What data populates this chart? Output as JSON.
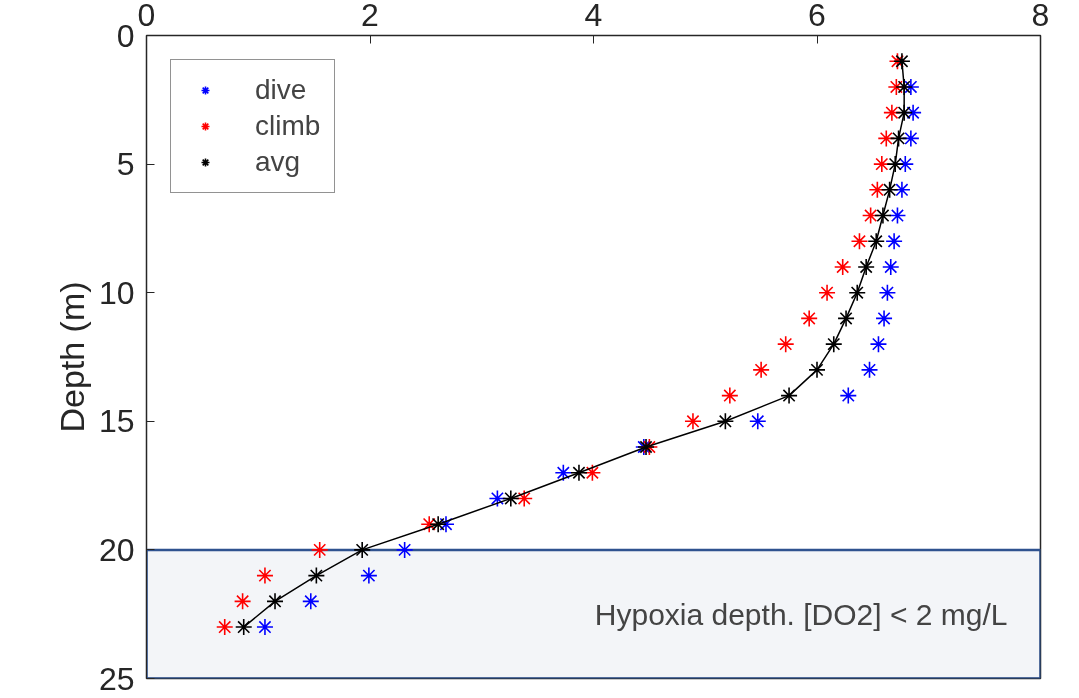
{
  "chart_data": {
    "type": "scatter",
    "ylabel": "Depth (m)",
    "marker": "cross",
    "legend": "top left",
    "grid": false,
    "xlim": [
      0,
      8
    ],
    "xticks": [
      0,
      2,
      4,
      6,
      8
    ],
    "ylim": [
      25,
      0
    ],
    "yticks": [
      0,
      5,
      10,
      15,
      20,
      25
    ],
    "series": [
      {
        "name": "dive",
        "color": "#0000ff",
        "x": [
          null,
          6.84,
          6.86,
          6.84,
          6.79,
          6.76,
          6.72,
          6.69,
          6.66,
          6.63,
          6.6,
          6.55,
          6.47,
          6.28,
          5.47,
          4.45,
          3.73,
          3.14,
          2.68,
          2.31,
          1.99,
          1.47,
          1.06
        ],
        "values": [
          null,
          2,
          3,
          4,
          5,
          6,
          7,
          8,
          9,
          10,
          11,
          12,
          13,
          14,
          15,
          16,
          17,
          18,
          19,
          20,
          21,
          22,
          23
        ]
      },
      {
        "name": "climb",
        "color": "#ff0000",
        "x": [
          6.72,
          6.71,
          6.67,
          6.62,
          6.58,
          6.54,
          6.48,
          6.38,
          6.23,
          6.09,
          5.93,
          5.72,
          5.5,
          5.22,
          4.89,
          4.5,
          3.99,
          3.38,
          2.53,
          1.55,
          1.06,
          0.86,
          0.7
        ],
        "values": [
          1,
          2,
          3,
          4,
          5,
          6,
          7,
          8,
          9,
          10,
          11,
          12,
          13,
          14,
          15,
          16,
          17,
          18,
          19,
          20,
          21,
          22,
          23
        ]
      },
      {
        "name": "avg",
        "color": "#000000",
        "type": "line",
        "x": [
          6.76,
          6.78,
          6.78,
          6.73,
          6.7,
          6.65,
          6.59,
          6.53,
          6.44,
          6.36,
          6.26,
          6.15,
          6.0,
          5.75,
          5.18,
          4.47,
          3.87,
          3.26,
          2.61,
          1.93,
          1.52,
          1.15,
          0.87
        ],
        "values": [
          1,
          2,
          3,
          4,
          5,
          6,
          7,
          8,
          9,
          10,
          11,
          12,
          13,
          14,
          15,
          16,
          17,
          18,
          19,
          20,
          21,
          22,
          23
        ]
      }
    ],
    "bands": [
      {
        "axis": "y",
        "from": 20,
        "to": 25,
        "label": "Hypoxia depth.    [DO2] < 2 mg/L",
        "color": "#2f528f"
      }
    ]
  }
}
